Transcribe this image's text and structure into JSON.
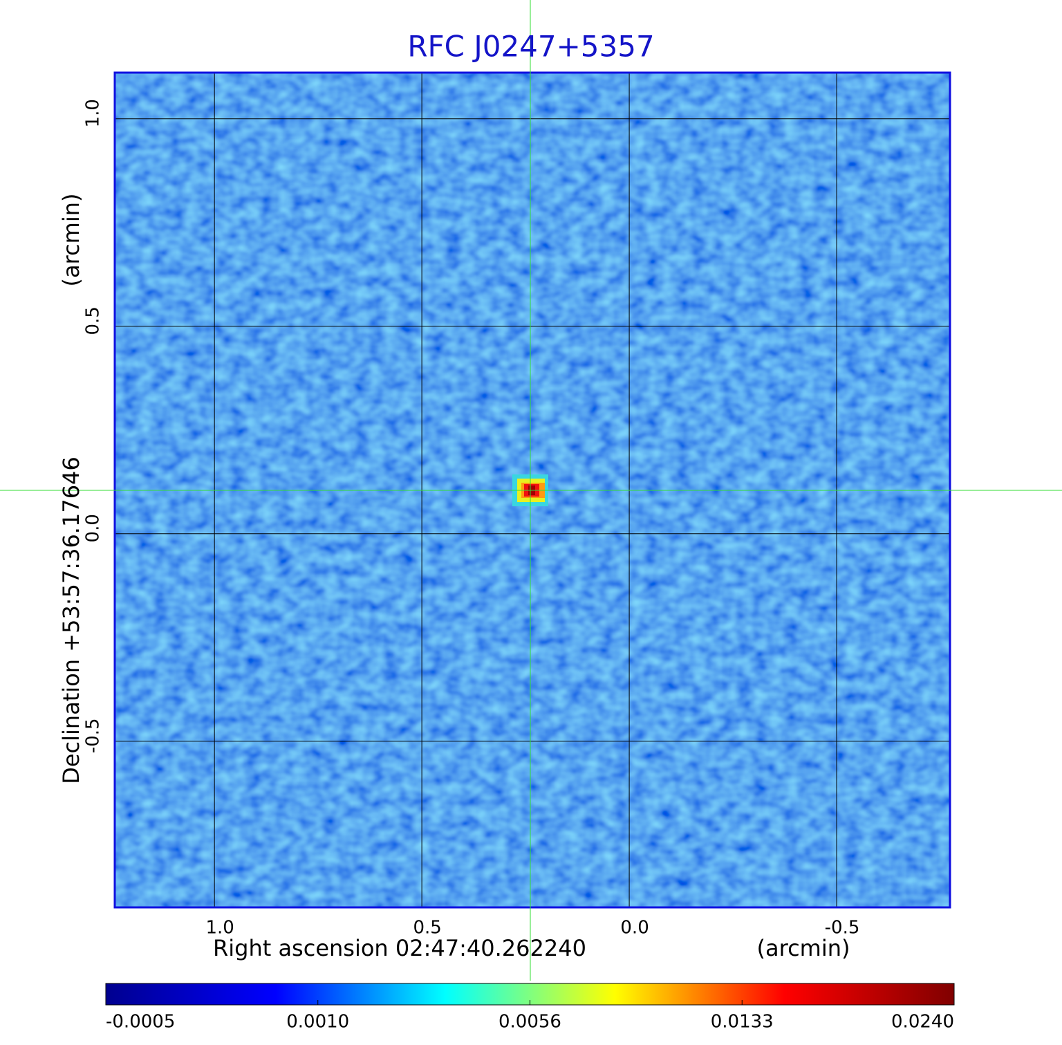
{
  "chart_data": {
    "type": "image",
    "title": "RFC J0247+5357",
    "x_label": "Right ascension  02:47:40.262240",
    "x_unit": "(arcmin)",
    "y_label": "Declination  +53:57:36.17646",
    "y_unit": "(arcmin)",
    "xlim": [
      1.242,
      -0.775
    ],
    "ylim": [
      -0.902,
      1.113
    ],
    "xticks": [
      {
        "value": 1,
        "label": "1.0"
      },
      0.5,
      {
        "value": 0,
        "label": "0.0"
      },
      -0.5
    ],
    "yticks": [
      -0.5,
      {
        "value": 0,
        "label": "0.0"
      },
      0.5,
      {
        "value": 1,
        "label": "1.0"
      }
    ],
    "grid": true,
    "colorbar": {
      "ticks": [
        {
          "value": -0.0005,
          "label": "-0.0005"
        },
        {
          "value": 0.001,
          "label": "0.0010"
        },
        0.0056,
        0.0133,
        {
          "value": 0.024,
          "label": "0.0240"
        }
      ],
      "colors": [
        "#00008f",
        "#0000ff",
        "#00ffff",
        "#ffff00",
        "#ff0000",
        "#800000"
      ]
    }
  }
}
